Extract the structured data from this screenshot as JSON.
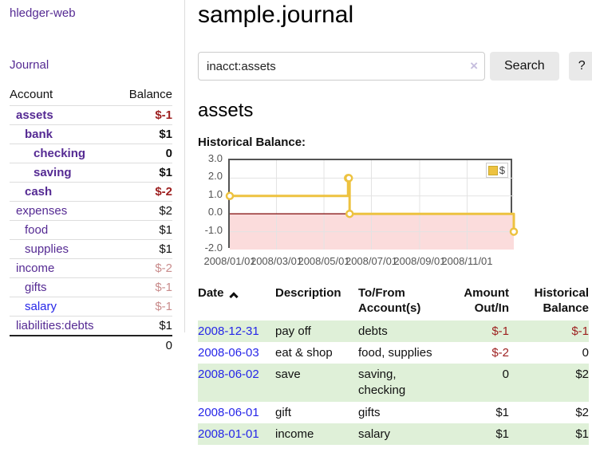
{
  "app": {
    "brand": "hledger-web",
    "nav_journal": "Journal"
  },
  "colors": {
    "link_purple": "#552a93",
    "link_blue": "#2626e8",
    "negative_red": "#9d1f1f",
    "negative_muted": "#c98c8c",
    "row_green": "#dff0d8",
    "chart_yellow": "#edc240"
  },
  "sidebar": {
    "accounts_table": {
      "headers": {
        "account": "Account",
        "balance": "Balance"
      },
      "rows": [
        {
          "name": "assets",
          "depth": 1,
          "bold": true,
          "balance": "$-1",
          "color": "c-red"
        },
        {
          "name": "bank",
          "depth": 2,
          "bold": true,
          "balance": "$1",
          "color": "c-black"
        },
        {
          "name": "checking",
          "depth": 3,
          "bold": true,
          "balance": "0",
          "color": "c-black"
        },
        {
          "name": "saving",
          "depth": 3,
          "bold": true,
          "balance": "$1",
          "color": "c-black"
        },
        {
          "name": "cash",
          "depth": 2,
          "bold": true,
          "balance": "$-2",
          "color": "c-red"
        },
        {
          "name": "expenses",
          "depth": 1,
          "bold": false,
          "balance": "$2",
          "color": "c-black"
        },
        {
          "name": "food",
          "depth": 2,
          "bold": false,
          "balance": "$1",
          "color": "c-black"
        },
        {
          "name": "supplies",
          "depth": 2,
          "bold": false,
          "balance": "$1",
          "color": "c-black"
        },
        {
          "name": "income",
          "depth": 1,
          "bold": false,
          "balance": "$-2",
          "color": "c-pink"
        },
        {
          "name": "gifts",
          "depth": 2,
          "bold": false,
          "balance": "$-1",
          "color": "c-pink"
        },
        {
          "name": "salary",
          "depth": 2,
          "bold": false,
          "unvisited": true,
          "balance": "$-1",
          "color": "c-pink"
        },
        {
          "name": "liabilities:debts",
          "depth": 1,
          "bold": false,
          "balance": "$1",
          "color": "c-black"
        }
      ],
      "total": "0"
    }
  },
  "header": {
    "title": "sample.journal"
  },
  "search": {
    "value": "inacct:assets",
    "clear_icon": "×",
    "button": "Search",
    "help_button": "?"
  },
  "account_page": {
    "heading": "assets",
    "chart_label": "Historical Balance:"
  },
  "chart_data": {
    "type": "line",
    "step": true,
    "title": "Historical Balance of assets",
    "legend": "$",
    "legend_position": "top-right",
    "series": [
      {
        "name": "$",
        "color": "#edc240",
        "points": [
          [
            "2008-01-01",
            1
          ],
          [
            "2008-06-01",
            2
          ],
          [
            "2008-06-02",
            2
          ],
          [
            "2008-06-03",
            0
          ],
          [
            "2008-12-31",
            -1
          ]
        ]
      }
    ],
    "ylim": [
      -2,
      3
    ],
    "y_ticks": [
      "3.0",
      "2.0",
      "1.0",
      "0.0",
      "-1.0",
      "-2.0"
    ],
    "x_ticks": [
      "2008/01/01",
      "2008/03/01",
      "2008/05/01",
      "2008/07/01",
      "2008/09/01",
      "2008/11/01"
    ],
    "x_start": "2008-01-01",
    "x_end": "2008-12-31",
    "grid": true,
    "negative_region_color": "#fbdcdc",
    "zero_line_color": "#8b1a1a"
  },
  "register": {
    "headers": [
      {
        "lines": [
          "Date"
        ],
        "align": "left",
        "sort_icon": true
      },
      {
        "lines": [
          "Description"
        ],
        "align": "left"
      },
      {
        "lines": [
          "To/From",
          "Account(s)"
        ],
        "align": "left"
      },
      {
        "lines": [
          "Amount",
          "Out/In"
        ],
        "align": "right"
      },
      {
        "lines": [
          "Historical",
          "Balance"
        ],
        "align": "right"
      }
    ],
    "rows": [
      {
        "date": "2008-12-31",
        "description": "pay off",
        "accounts": "debts",
        "amount": "$-1",
        "balance": "$-1"
      },
      {
        "date": "2008-06-03",
        "description": "eat & shop",
        "accounts": "food, supplies",
        "amount": "$-2",
        "balance": "0"
      },
      {
        "date": "2008-06-02",
        "description": "save",
        "accounts": "saving, checking",
        "amount": "0",
        "balance": "$2"
      },
      {
        "date": "2008-06-01",
        "description": "gift",
        "accounts": "gifts",
        "amount": "$1",
        "balance": "$2"
      },
      {
        "date": "2008-01-01",
        "description": "income",
        "accounts": "salary",
        "amount": "$1",
        "balance": "$1"
      }
    ]
  }
}
